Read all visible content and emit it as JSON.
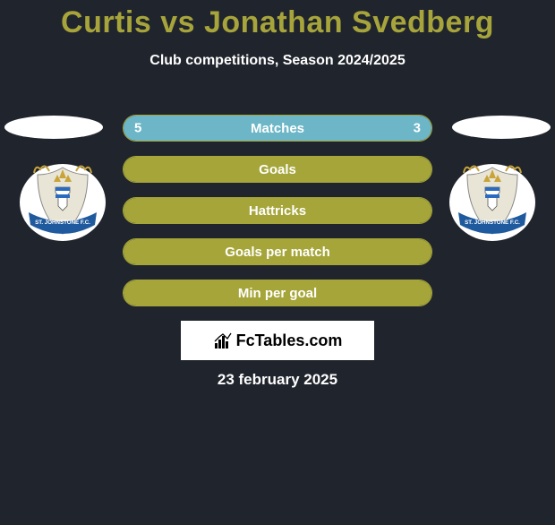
{
  "background_color": "#20242c",
  "title": "Curtis vs Jonathan Svedberg",
  "title_color": "#a6a43a",
  "subtitle": "Club competitions, Season 2024/2025",
  "date": "23 february 2025",
  "brand_text": "FcTables.com",
  "colors": {
    "row_fill": "#a5a53a",
    "row_border": "#a5a53a",
    "matches_left_fill": "#6cb6c7",
    "matches_right_fill": "#6cb6c7",
    "brand_bg": "#ffffff"
  },
  "crest": {
    "ribbon_text": "ST. JOHNSTONE F.C.",
    "ribbon_color": "#1f5a9e",
    "body_color": "#e9e5d6",
    "accent_color": "#c8a43a"
  },
  "rows": [
    {
      "label": "Matches",
      "left_val": "5",
      "right_val": "3",
      "left_pct": 62.5,
      "right_pct": 37.5,
      "split": true
    },
    {
      "label": "Goals",
      "left_val": "",
      "right_val": "",
      "left_pct": 100,
      "right_pct": 0,
      "split": false
    },
    {
      "label": "Hattricks",
      "left_val": "",
      "right_val": "",
      "left_pct": 100,
      "right_pct": 0,
      "split": false
    },
    {
      "label": "Goals per match",
      "left_val": "",
      "right_val": "",
      "left_pct": 100,
      "right_pct": 0,
      "split": false
    },
    {
      "label": "Min per goal",
      "left_val": "",
      "right_val": "",
      "left_pct": 100,
      "right_pct": 0,
      "split": false
    }
  ]
}
